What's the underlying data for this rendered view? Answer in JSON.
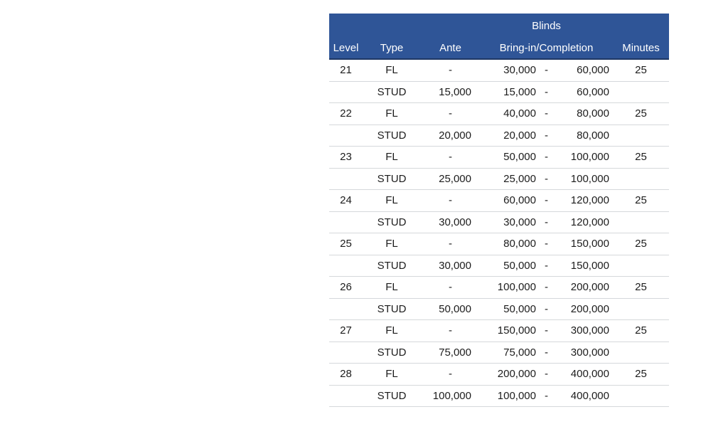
{
  "colors": {
    "header_bg": "#2F5597",
    "header_border": "#1F3864",
    "header_text": "#FFFFFF",
    "row_line": "#D5D8DB",
    "text": "#1C1C1C"
  },
  "table": {
    "banner": "Blinds",
    "headers": {
      "level": "Level",
      "type": "Type",
      "ante": "Ante",
      "bring_in": "Bring-in/Completion",
      "minutes": "Minutes"
    },
    "rows": [
      {
        "level": "21",
        "type": "FL",
        "ante": "-",
        "bring_low": "30,000",
        "sep": "-",
        "bring_high": "60,000",
        "minutes": "25"
      },
      {
        "level": "",
        "type": "STUD",
        "ante": "15,000",
        "bring_low": "15,000",
        "sep": "-",
        "bring_high": "60,000",
        "minutes": ""
      },
      {
        "level": "22",
        "type": "FL",
        "ante": "-",
        "bring_low": "40,000",
        "sep": "-",
        "bring_high": "80,000",
        "minutes": "25"
      },
      {
        "level": "",
        "type": "STUD",
        "ante": "20,000",
        "bring_low": "20,000",
        "sep": "-",
        "bring_high": "80,000",
        "minutes": ""
      },
      {
        "level": "23",
        "type": "FL",
        "ante": "-",
        "bring_low": "50,000",
        "sep": "-",
        "bring_high": "100,000",
        "minutes": "25"
      },
      {
        "level": "",
        "type": "STUD",
        "ante": "25,000",
        "bring_low": "25,000",
        "sep": "-",
        "bring_high": "100,000",
        "minutes": ""
      },
      {
        "level": "24",
        "type": "FL",
        "ante": "-",
        "bring_low": "60,000",
        "sep": "-",
        "bring_high": "120,000",
        "minutes": "25"
      },
      {
        "level": "",
        "type": "STUD",
        "ante": "30,000",
        "bring_low": "30,000",
        "sep": "-",
        "bring_high": "120,000",
        "minutes": ""
      },
      {
        "level": "25",
        "type": "FL",
        "ante": "-",
        "bring_low": "80,000",
        "sep": "-",
        "bring_high": "150,000",
        "minutes": "25"
      },
      {
        "level": "",
        "type": "STUD",
        "ante": "30,000",
        "bring_low": "50,000",
        "sep": "-",
        "bring_high": "150,000",
        "minutes": ""
      },
      {
        "level": "26",
        "type": "FL",
        "ante": "-",
        "bring_low": "100,000",
        "sep": "-",
        "bring_high": "200,000",
        "minutes": "25"
      },
      {
        "level": "",
        "type": "STUD",
        "ante": "50,000",
        "bring_low": "50,000",
        "sep": "-",
        "bring_high": "200,000",
        "minutes": ""
      },
      {
        "level": "27",
        "type": "FL",
        "ante": "-",
        "bring_low": "150,000",
        "sep": "-",
        "bring_high": "300,000",
        "minutes": "25"
      },
      {
        "level": "",
        "type": "STUD",
        "ante": "75,000",
        "bring_low": "75,000",
        "sep": "-",
        "bring_high": "300,000",
        "minutes": ""
      },
      {
        "level": "28",
        "type": "FL",
        "ante": "-",
        "bring_low": "200,000",
        "sep": "-",
        "bring_high": "400,000",
        "minutes": "25"
      },
      {
        "level": "",
        "type": "STUD",
        "ante": "100,000",
        "bring_low": "100,000",
        "sep": "-",
        "bring_high": "400,000",
        "minutes": ""
      }
    ]
  }
}
